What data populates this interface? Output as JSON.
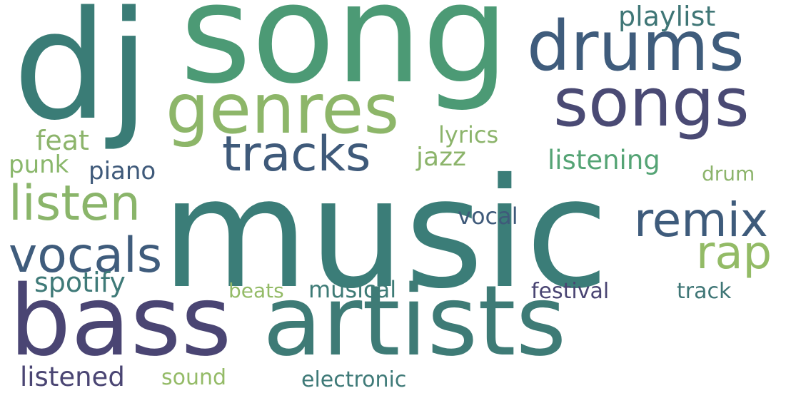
{
  "words": [
    {
      "text": "music",
      "color": "#3b7d78"
    },
    {
      "text": "song",
      "color": "#4c9a75"
    },
    {
      "text": "dj",
      "color": "#3a7c76"
    },
    {
      "text": "bass",
      "color": "#4a4573"
    },
    {
      "text": "artists",
      "color": "#3e7b76"
    },
    {
      "text": "drums",
      "color": "#3f5c7c"
    },
    {
      "text": "songs",
      "color": "#4a4a74"
    },
    {
      "text": "genres",
      "color": "#8db669"
    },
    {
      "text": "tracks",
      "color": "#3f5a7a"
    },
    {
      "text": "listen",
      "color": "#8ab56a"
    },
    {
      "text": "vocals",
      "color": "#3f5c7c"
    },
    {
      "text": "remix",
      "color": "#3e5b7b"
    },
    {
      "text": "rap",
      "color": "#93bb66"
    },
    {
      "text": "playlist",
      "color": "#3f7676"
    },
    {
      "text": "feat",
      "color": "#8cb46b"
    },
    {
      "text": "punk",
      "color": "#8ab76b"
    },
    {
      "text": "piano",
      "color": "#3f5a7a"
    },
    {
      "text": "lyrics",
      "color": "#8cb46b"
    },
    {
      "text": "jazz",
      "color": "#8cb46b"
    },
    {
      "text": "listening",
      "color": "#55a475"
    },
    {
      "text": "drum",
      "color": "#8cb46b"
    },
    {
      "text": "vocal",
      "color": "#3f5a7a"
    },
    {
      "text": "spotify",
      "color": "#3f7a78"
    },
    {
      "text": "beats",
      "color": "#94bb67"
    },
    {
      "text": "musical",
      "color": "#3e7b76"
    },
    {
      "text": "festival",
      "color": "#4a4573"
    },
    {
      "text": "track",
      "color": "#3f7676"
    },
    {
      "text": "listened",
      "color": "#4a4573"
    },
    {
      "text": "sound",
      "color": "#94bb67"
    },
    {
      "text": "electronic",
      "color": "#3f7a78"
    }
  ]
}
